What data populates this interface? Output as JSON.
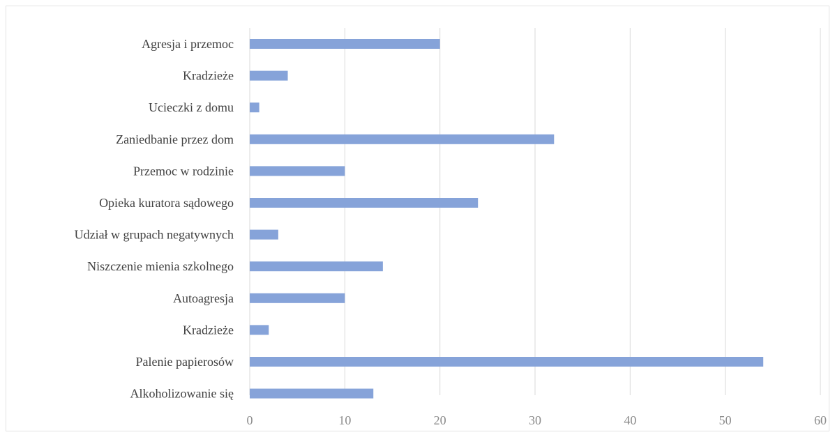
{
  "chart_data": {
    "type": "bar",
    "orientation": "horizontal",
    "title": "",
    "xlabel": "",
    "ylabel": "",
    "categories": [
      "Agresja i przemoc",
      "Kradzieże",
      "Ucieczki z domu",
      "Zaniedbanie przez dom",
      "Przemoc w rodzinie",
      "Opieka kuratora sądowego",
      "Udział w grupach negatywnych",
      "Niszczenie mienia szkolnego",
      "Autoagresja",
      "Kradzieże",
      "Palenie papierosów",
      "Alkoholizowanie się"
    ],
    "values": [
      20,
      4,
      1,
      32,
      10,
      24,
      3,
      14,
      10,
      2,
      54,
      13
    ],
    "xlim": [
      0,
      60
    ],
    "xticks": [
      "0",
      "10",
      "20",
      "30",
      "40",
      "50",
      "60"
    ],
    "grid": "vertical",
    "legend": "none",
    "bar_color": "#86a3d9",
    "grid_color": "#d9d9d9"
  }
}
